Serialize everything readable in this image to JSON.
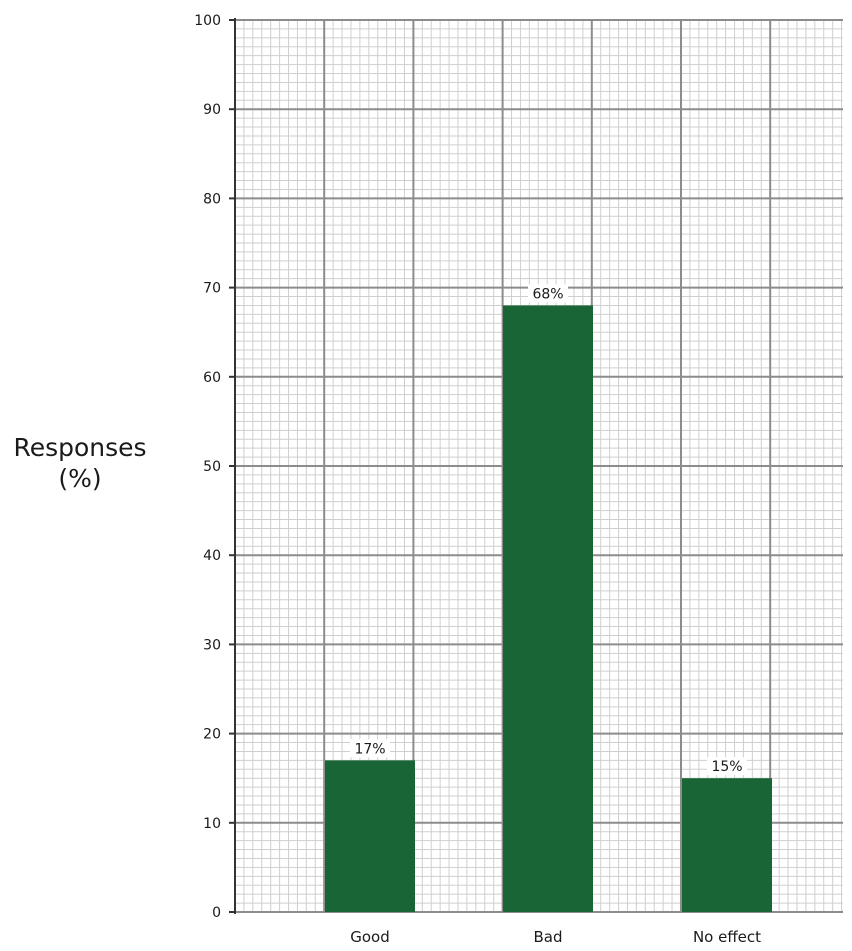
{
  "chart_data": {
    "type": "bar",
    "title": "",
    "xlabel": "",
    "ylabel_line1": "Responses",
    "ylabel_line2": "(%)",
    "categories": [
      "Good",
      "Bad",
      "No effect"
    ],
    "values": [
      17,
      68,
      15
    ],
    "data_labels": [
      "17%",
      "68%",
      "15%"
    ],
    "ylim": [
      0,
      100
    ],
    "yticks": [
      0,
      10,
      20,
      30,
      40,
      50,
      60,
      70,
      80,
      90,
      100
    ],
    "grid": "on (graph-paper style, major every 10, minor every 1)",
    "legend": "none",
    "bar_color": "#1a6535",
    "grid_major_color": "#8c8c8c",
    "grid_minor_color": "#cfcfcf"
  }
}
